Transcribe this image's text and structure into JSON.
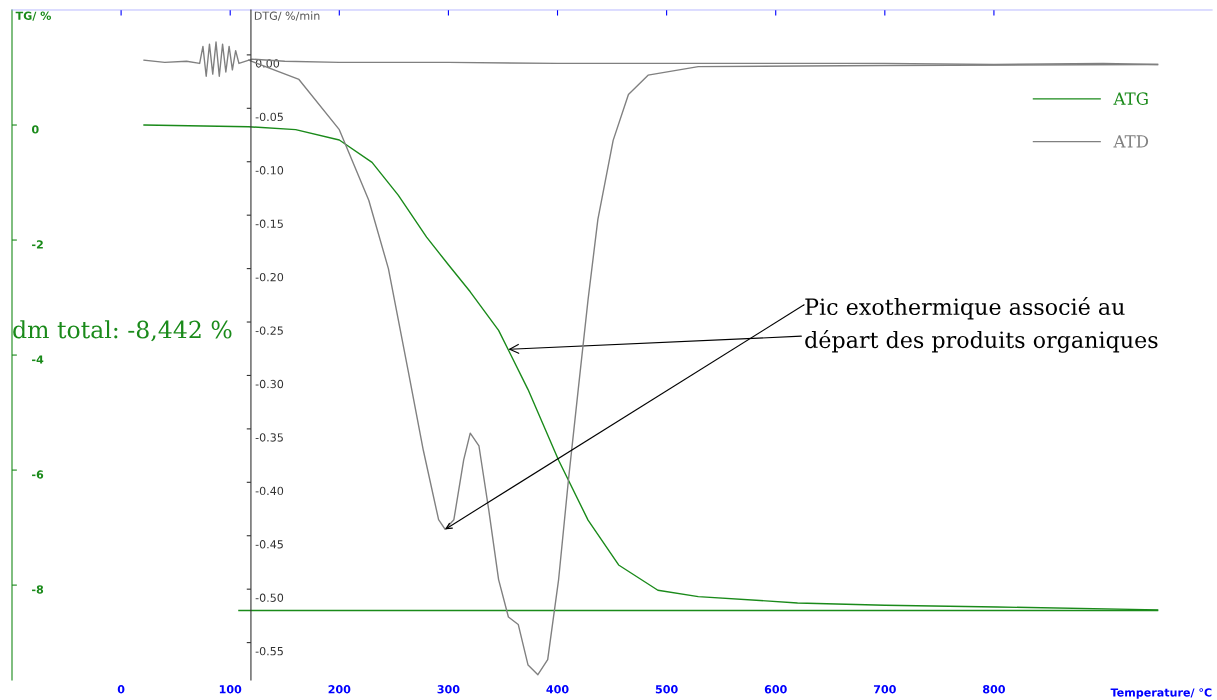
{
  "chart_data": {
    "type": "line",
    "xlabel": "Temperature/ °C",
    "ylabel": "TG/ %",
    "y2label": "DTG/ %/min",
    "xlim": [
      -100,
      1000
    ],
    "xticks": [
      0,
      100,
      200,
      300,
      400,
      500,
      600,
      700,
      800
    ],
    "ylim": [
      -9.65,
      2.0
    ],
    "yticks": [
      {
        "value": 0,
        "label": "0"
      },
      {
        "value": -2,
        "label": "-2"
      },
      {
        "value": -4,
        "label": "-4"
      },
      {
        "value": -6,
        "label": "-6"
      },
      {
        "value": -8,
        "label": "-8"
      }
    ],
    "y2lim": [
      -0.585,
      0.042
    ],
    "y2ticks": [
      {
        "value": 0,
        "label": "0.00"
      },
      {
        "value": -0.05,
        "label": "-0.05"
      },
      {
        "value": -0.1,
        "label": "-0.10"
      },
      {
        "value": -0.15,
        "label": "-0.15"
      },
      {
        "value": -0.2,
        "label": "-0.20"
      },
      {
        "value": -0.25,
        "label": "-0.25"
      },
      {
        "value": -0.3,
        "label": "-0.30"
      },
      {
        "value": -0.35,
        "label": "-0.35"
      },
      {
        "value": -0.4,
        "label": "-0.40"
      },
      {
        "value": -0.45,
        "label": "-0.45"
      },
      {
        "value": -0.5,
        "label": "-0.50"
      },
      {
        "value": -0.55,
        "label": "-0.55"
      }
    ],
    "legend": "top right",
    "grid": false,
    "marker": "none",
    "line_style": "solid",
    "series": [
      {
        "name": "ATG",
        "color": "#1a8a1a",
        "x": [
          21,
          117,
          160,
          200,
          230,
          254,
          280,
          300,
          320,
          346,
          373,
          401,
          428,
          456,
          492,
          529,
          620,
          700,
          803,
          950
        ],
        "values": [
          0,
          -0.03,
          -0.08,
          -0.26,
          -0.65,
          -1.22,
          -1.95,
          -2.43,
          -2.9,
          -3.57,
          -4.6,
          -5.83,
          -6.87,
          -7.65,
          -8.09,
          -8.2,
          -8.31,
          -8.35,
          -8.38,
          -8.43
        ]
      },
      {
        "color": "#1a8a1a",
        "x": [
          108,
          950
        ],
        "values": [
          -8.442,
          -8.442
        ]
      },
      {
        "name": "ATD",
        "color": "#808080",
        "axis": "y2",
        "x": [
          117,
          163,
          200,
          227,
          245,
          263,
          277,
          291,
          297,
          305,
          314,
          320,
          328,
          337,
          346,
          355,
          364,
          373,
          382,
          391,
          401,
          410,
          419,
          428,
          437,
          451,
          465,
          483,
          529,
          700,
          950
        ],
        "values": [
          -0.005,
          -0.023,
          -0.07,
          -0.136,
          -0.2,
          -0.295,
          -0.37,
          -0.435,
          -0.444,
          -0.435,
          -0.379,
          -0.354,
          -0.366,
          -0.426,
          -0.491,
          -0.526,
          -0.533,
          -0.571,
          -0.58,
          -0.566,
          -0.491,
          -0.398,
          -0.313,
          -0.229,
          -0.154,
          -0.08,
          -0.037,
          -0.019,
          -0.011,
          -0.01,
          -0.009
        ]
      },
      {
        "color": "#808080",
        "axis": "y2",
        "x": [
          21,
          40,
          60,
          72,
          75,
          78,
          81,
          84,
          87,
          90,
          93,
          96,
          99,
          102,
          105,
          108,
          120,
          150,
          200,
          300,
          400,
          500,
          600,
          700,
          800,
          900,
          950
        ],
        "values": [
          -0.005,
          -0.007,
          -0.006,
          -0.008,
          0.008,
          -0.02,
          0.01,
          -0.018,
          0.012,
          -0.02,
          0.01,
          -0.016,
          0.008,
          -0.014,
          0.004,
          -0.008,
          -0.004,
          -0.006,
          -0.007,
          -0.007,
          -0.008,
          -0.008,
          -0.008,
          -0.008,
          -0.009,
          -0.008,
          -0.009
        ]
      }
    ],
    "annotations": [
      "dm total: -8,442 %",
      {
        "text": "Pic exothermique associé au\ndépart des produits organiques",
        "x": 355,
        "y": -3.9
      }
    ]
  }
}
